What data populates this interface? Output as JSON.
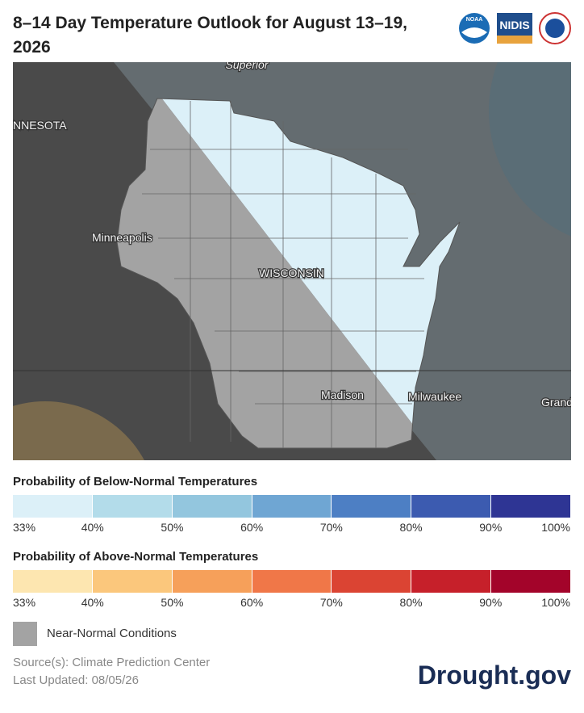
{
  "header": {
    "title": "8–14 Day Temperature Outlook for August 13–19, 2026",
    "logos": [
      "NOAA",
      "NIDIS"
    ]
  },
  "map": {
    "labels": [
      "Superior",
      "NNESOTA",
      "Minneapolis",
      "WISCONSIN",
      "Madison",
      "Milwaukee",
      "Grand"
    ]
  },
  "legend": {
    "below": {
      "title": "Probability of Below-Normal Temperatures",
      "ticks": [
        "33%",
        "40%",
        "50%",
        "60%",
        "70%",
        "80%",
        "90%",
        "100%"
      ],
      "colors": [
        "#dcf0f8",
        "#b3dcea",
        "#93c6de",
        "#6fa6d3",
        "#4d7fc4",
        "#3c5bb0",
        "#2e3594"
      ]
    },
    "above": {
      "title": "Probability of Above-Normal Temperatures",
      "ticks": [
        "33%",
        "40%",
        "50%",
        "60%",
        "70%",
        "80%",
        "90%",
        "100%"
      ],
      "colors": [
        "#fde6b0",
        "#fbc77c",
        "#f6a05a",
        "#f07748",
        "#db4433",
        "#c6202a",
        "#a3042a"
      ]
    },
    "near_normal": "Near-Normal Conditions"
  },
  "footer": {
    "source": "Source(s): Climate Prediction Center",
    "updated": "Last Updated: 08/05/26",
    "brand": "Drought.gov"
  }
}
